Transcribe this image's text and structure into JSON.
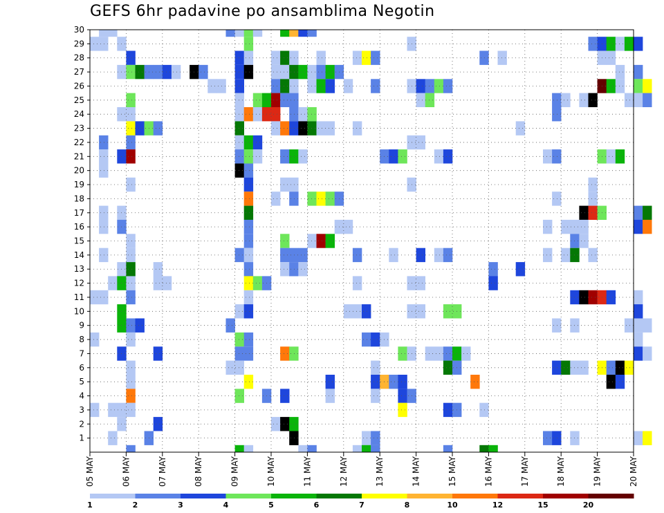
{
  "chart_data": {
    "type": "heatmap",
    "title": "GEFS 6hr padavine po ansamblima Negotin",
    "xlabel": "",
    "ylabel": "",
    "x_tick_labels": [
      "05 MAY",
      "06 MAY",
      "07 MAY",
      "08 MAY",
      "09 MAY",
      "10 MAY",
      "11 MAY",
      "12 MAY",
      "13 MAY",
      "14 MAY",
      "15 MAY",
      "16 MAY",
      "17 MAY",
      "18 MAY",
      "19 MAY",
      "20 MAY"
    ],
    "y_tick_labels": [
      "1",
      "2",
      "3",
      "4",
      "5",
      "6",
      "7",
      "8",
      "9",
      "10",
      "11",
      "12",
      "13",
      "14",
      "15",
      "16",
      "17",
      "18",
      "19",
      "20",
      "21",
      "22",
      "23",
      "24",
      "25",
      "26",
      "27",
      "28",
      "29",
      "30"
    ],
    "time_steps_per_day": 4,
    "grid": true,
    "legend": {
      "position": "bottom",
      "levels": [
        "1",
        "2",
        "3",
        "4",
        "5",
        "6",
        "7",
        "8",
        "10",
        "12",
        "15",
        "20"
      ],
      "colors": [
        "#b4c8f4",
        "#5a82e6",
        "#1e46dc",
        "#6ee65a",
        "#0ab40a",
        "#057805",
        "#ffff00",
        "#ffb432",
        "#ff780a",
        "#dc2814",
        "#a00000",
        "#640000"
      ]
    },
    "cells": [
      [
        30,
        5.25,
        1
      ],
      [
        30,
        5.5,
        1
      ],
      [
        30,
        8.75,
        2
      ],
      [
        30,
        9.0,
        1
      ],
      [
        30,
        9.25,
        4
      ],
      [
        30,
        9.5,
        1
      ],
      [
        30,
        10.25,
        5
      ],
      [
        30,
        10.5,
        8
      ],
      [
        30,
        10.75,
        3
      ],
      [
        30,
        11.0,
        2
      ],
      [
        29,
        5.0,
        1
      ],
      [
        29,
        5.25,
        1
      ],
      [
        29,
        5.75,
        1
      ],
      [
        29,
        9.25,
        4
      ],
      [
        29,
        13.75,
        1
      ],
      [
        29,
        18.75,
        2
      ],
      [
        29,
        19.0,
        3
      ],
      [
        29,
        19.25,
        5
      ],
      [
        29,
        19.5,
        1
      ],
      [
        29,
        19.75,
        5
      ],
      [
        29,
        20.0,
        3
      ],
      [
        28,
        6.0,
        3
      ],
      [
        28,
        9.0,
        3
      ],
      [
        28,
        9.25,
        1
      ],
      [
        28,
        10.0,
        1
      ],
      [
        28,
        10.25,
        6
      ],
      [
        28,
        10.5,
        1
      ],
      [
        28,
        11.25,
        1
      ],
      [
        28,
        12.25,
        1
      ],
      [
        28,
        12.5,
        7
      ],
      [
        28,
        12.75,
        2
      ],
      [
        28,
        15.75,
        2
      ],
      [
        28,
        16.25,
        1
      ],
      [
        28,
        19.0,
        1
      ],
      [
        28,
        19.25,
        1
      ],
      [
        27,
        5.75,
        1
      ],
      [
        27,
        6.0,
        4
      ],
      [
        27,
        6.25,
        6
      ],
      [
        27,
        6.5,
        2
      ],
      [
        27,
        6.75,
        2
      ],
      [
        27,
        7.0,
        3
      ],
      [
        27,
        7.25,
        1
      ],
      [
        27,
        7.75,
        13
      ],
      [
        27,
        8.0,
        2
      ],
      [
        27,
        9.0,
        3
      ],
      [
        27,
        9.25,
        13
      ],
      [
        27,
        10.0,
        1
      ],
      [
        27,
        10.25,
        1
      ],
      [
        27,
        10.5,
        6
      ],
      [
        27,
        10.75,
        5
      ],
      [
        27,
        11.0,
        1
      ],
      [
        27,
        11.25,
        2
      ],
      [
        27,
        11.5,
        5
      ],
      [
        27,
        11.75,
        2
      ],
      [
        27,
        19.5,
        1
      ],
      [
        27,
        20.0,
        2
      ],
      [
        26,
        8.25,
        1
      ],
      [
        26,
        8.5,
        1
      ],
      [
        26,
        9.0,
        3
      ],
      [
        26,
        10.0,
        2
      ],
      [
        26,
        10.25,
        6
      ],
      [
        26,
        10.5,
        1
      ],
      [
        26,
        11.0,
        1
      ],
      [
        26,
        11.25,
        5
      ],
      [
        26,
        11.5,
        3
      ],
      [
        26,
        12.0,
        1
      ],
      [
        26,
        12.75,
        2
      ],
      [
        26,
        13.75,
        1
      ],
      [
        26,
        14.0,
        3
      ],
      [
        26,
        14.25,
        2
      ],
      [
        26,
        14.5,
        4
      ],
      [
        26,
        14.75,
        2
      ],
      [
        26,
        19.0,
        12
      ],
      [
        26,
        19.25,
        5
      ],
      [
        26,
        19.5,
        1
      ],
      [
        26,
        20.0,
        4
      ],
      [
        26,
        20.25,
        7
      ],
      [
        25,
        6.0,
        4
      ],
      [
        25,
        9.0,
        1
      ],
      [
        25,
        9.5,
        4
      ],
      [
        25,
        9.75,
        5
      ],
      [
        25,
        10.0,
        11
      ],
      [
        25,
        10.25,
        2
      ],
      [
        25,
        10.5,
        2
      ],
      [
        25,
        14.0,
        1
      ],
      [
        25,
        14.25,
        4
      ],
      [
        25,
        17.75,
        2
      ],
      [
        25,
        18.0,
        1
      ],
      [
        25,
        18.5,
        1
      ],
      [
        25,
        18.75,
        13
      ],
      [
        25,
        19.75,
        1
      ],
      [
        25,
        20.0,
        1
      ],
      [
        25,
        20.25,
        2
      ],
      [
        24,
        5.75,
        1
      ],
      [
        24,
        6.0,
        1
      ],
      [
        24,
        9.0,
        1
      ],
      [
        24,
        9.25,
        9
      ],
      [
        24,
        9.5,
        1
      ],
      [
        24,
        9.75,
        10
      ],
      [
        24,
        10.0,
        10
      ],
      [
        24,
        10.5,
        2
      ],
      [
        24,
        10.75,
        1
      ],
      [
        24,
        11.0,
        4
      ],
      [
        24,
        17.75,
        2
      ],
      [
        23,
        6.0,
        7
      ],
      [
        23,
        6.25,
        3
      ],
      [
        23,
        6.5,
        4
      ],
      [
        23,
        6.75,
        2
      ],
      [
        23,
        9.0,
        6
      ],
      [
        23,
        10.0,
        1
      ],
      [
        23,
        10.25,
        9
      ],
      [
        23,
        10.5,
        3
      ],
      [
        23,
        10.75,
        14
      ],
      [
        23,
        11.0,
        6
      ],
      [
        23,
        11.25,
        1
      ],
      [
        23,
        11.5,
        1
      ],
      [
        23,
        12.25,
        1
      ],
      [
        23,
        16.75,
        1
      ],
      [
        22,
        5.25,
        2
      ],
      [
        22,
        6.0,
        2
      ],
      [
        22,
        9.0,
        1
      ],
      [
        22,
        9.25,
        5
      ],
      [
        22,
        9.5,
        3
      ],
      [
        22,
        13.75,
        1
      ],
      [
        22,
        14.0,
        1
      ],
      [
        21,
        5.25,
        1
      ],
      [
        21,
        5.75,
        3
      ],
      [
        21,
        6.0,
        11
      ],
      [
        21,
        9.0,
        2
      ],
      [
        21,
        9.25,
        4
      ],
      [
        21,
        9.5,
        1
      ],
      [
        21,
        10.25,
        2
      ],
      [
        21,
        10.5,
        5
      ],
      [
        21,
        10.75,
        1
      ],
      [
        21,
        13.0,
        2
      ],
      [
        21,
        13.25,
        3
      ],
      [
        21,
        13.5,
        4
      ],
      [
        21,
        14.5,
        1
      ],
      [
        21,
        14.75,
        3
      ],
      [
        21,
        17.5,
        1
      ],
      [
        21,
        17.75,
        2
      ],
      [
        21,
        19.0,
        4
      ],
      [
        21,
        19.25,
        1
      ],
      [
        21,
        19.5,
        5
      ],
      [
        20,
        5.25,
        1
      ],
      [
        20,
        9.0,
        13
      ],
      [
        20,
        9.25,
        2
      ],
      [
        19,
        6.0,
        1
      ],
      [
        19,
        9.25,
        3
      ],
      [
        19,
        10.25,
        1
      ],
      [
        19,
        10.5,
        1
      ],
      [
        19,
        13.75,
        1
      ],
      [
        19,
        18.75,
        1
      ],
      [
        18,
        9.25,
        9
      ],
      [
        18,
        10.0,
        1
      ],
      [
        18,
        10.5,
        2
      ],
      [
        18,
        11.0,
        4
      ],
      [
        18,
        11.25,
        7
      ],
      [
        18,
        11.5,
        4
      ],
      [
        18,
        11.75,
        2
      ],
      [
        18,
        17.75,
        1
      ],
      [
        18,
        18.75,
        1
      ],
      [
        17,
        5.25,
        1
      ],
      [
        17,
        5.75,
        1
      ],
      [
        17,
        9.25,
        6
      ],
      [
        17,
        18.5,
        13
      ],
      [
        17,
        18.75,
        10
      ],
      [
        17,
        19.0,
        4
      ],
      [
        17,
        20.0,
        2
      ],
      [
        17,
        20.25,
        6
      ],
      [
        16,
        5.25,
        1
      ],
      [
        16,
        5.75,
        2
      ],
      [
        16,
        9.25,
        2
      ],
      [
        16,
        11.75,
        1
      ],
      [
        16,
        12.0,
        1
      ],
      [
        16,
        17.5,
        1
      ],
      [
        16,
        18.0,
        1
      ],
      [
        16,
        18.25,
        1
      ],
      [
        16,
        18.5,
        1
      ],
      [
        16,
        20.0,
        3
      ],
      [
        16,
        20.25,
        9
      ],
      [
        15,
        6.0,
        1
      ],
      [
        15,
        9.25,
        2
      ],
      [
        15,
        10.25,
        4
      ],
      [
        15,
        11.0,
        1
      ],
      [
        15,
        11.25,
        11
      ],
      [
        15,
        11.5,
        5
      ],
      [
        15,
        18.25,
        2
      ],
      [
        15,
        18.5,
        1
      ],
      [
        14,
        5.25,
        1
      ],
      [
        14,
        6.0,
        1
      ],
      [
        14,
        9.0,
        2
      ],
      [
        14,
        9.25,
        1
      ],
      [
        14,
        10.25,
        2
      ],
      [
        14,
        10.5,
        2
      ],
      [
        14,
        10.75,
        2
      ],
      [
        14,
        12.25,
        2
      ],
      [
        14,
        13.25,
        1
      ],
      [
        14,
        14.0,
        3
      ],
      [
        14,
        14.5,
        1
      ],
      [
        14,
        14.75,
        2
      ],
      [
        14,
        17.5,
        1
      ],
      [
        14,
        18.0,
        1
      ],
      [
        14,
        18.25,
        6
      ],
      [
        14,
        18.75,
        1
      ],
      [
        13,
        5.75,
        1
      ],
      [
        13,
        6.0,
        6
      ],
      [
        13,
        6.75,
        1
      ],
      [
        13,
        9.25,
        2
      ],
      [
        13,
        10.25,
        1
      ],
      [
        13,
        10.5,
        2
      ],
      [
        13,
        10.75,
        1
      ],
      [
        13,
        16.0,
        2
      ],
      [
        13,
        16.75,
        3
      ],
      [
        12,
        5.5,
        1
      ],
      [
        12,
        5.75,
        5
      ],
      [
        12,
        6.0,
        1
      ],
      [
        12,
        6.75,
        1
      ],
      [
        12,
        7.0,
        1
      ],
      [
        12,
        9.25,
        7
      ],
      [
        12,
        9.5,
        4
      ],
      [
        12,
        9.75,
        2
      ],
      [
        12,
        12.25,
        1
      ],
      [
        12,
        13.75,
        1
      ],
      [
        12,
        14.0,
        1
      ],
      [
        12,
        16.0,
        3
      ],
      [
        11,
        5.0,
        1
      ],
      [
        11,
        5.25,
        1
      ],
      [
        11,
        6.0,
        2
      ],
      [
        11,
        9.25,
        1
      ],
      [
        11,
        18.25,
        3
      ],
      [
        11,
        18.5,
        13
      ],
      [
        11,
        18.75,
        11
      ],
      [
        11,
        19.0,
        10
      ],
      [
        11,
        19.25,
        3
      ],
      [
        11,
        20.0,
        1
      ],
      [
        10,
        5.75,
        5
      ],
      [
        10,
        9.0,
        1
      ],
      [
        10,
        9.25,
        3
      ],
      [
        10,
        12.0,
        1
      ],
      [
        10,
        12.25,
        1
      ],
      [
        10,
        12.5,
        3
      ],
      [
        10,
        13.75,
        1
      ],
      [
        10,
        14.0,
        1
      ],
      [
        10,
        14.75,
        4
      ],
      [
        10,
        15.0,
        4
      ],
      [
        10,
        20.0,
        3
      ],
      [
        9,
        5.75,
        5
      ],
      [
        9,
        6.0,
        2
      ],
      [
        9,
        6.25,
        3
      ],
      [
        9,
        8.75,
        2
      ],
      [
        9,
        17.75,
        1
      ],
      [
        9,
        18.25,
        1
      ],
      [
        9,
        19.75,
        1
      ],
      [
        9,
        20.0,
        1
      ],
      [
        9,
        20.25,
        1
      ],
      [
        8,
        5.0,
        1
      ],
      [
        8,
        6.0,
        1
      ],
      [
        8,
        9.0,
        4
      ],
      [
        8,
        9.25,
        2
      ],
      [
        8,
        12.5,
        2
      ],
      [
        8,
        12.75,
        3
      ],
      [
        8,
        13.0,
        1
      ],
      [
        8,
        20.0,
        1
      ],
      [
        7,
        5.75,
        3
      ],
      [
        7,
        6.75,
        3
      ],
      [
        7,
        9.0,
        2
      ],
      [
        7,
        9.25,
        2
      ],
      [
        7,
        10.25,
        9
      ],
      [
        7,
        10.5,
        4
      ],
      [
        7,
        13.5,
        4
      ],
      [
        7,
        13.75,
        1
      ],
      [
        7,
        14.25,
        1
      ],
      [
        7,
        14.5,
        1
      ],
      [
        7,
        14.75,
        2
      ],
      [
        7,
        15.0,
        5
      ],
      [
        7,
        15.25,
        1
      ],
      [
        7,
        20.0,
        3
      ],
      [
        7,
        20.25,
        1
      ],
      [
        6,
        6.0,
        1
      ],
      [
        6,
        8.75,
        1
      ],
      [
        6,
        9.0,
        1
      ],
      [
        6,
        12.75,
        1
      ],
      [
        6,
        14.75,
        6
      ],
      [
        6,
        15.0,
        2
      ],
      [
        6,
        17.75,
        3
      ],
      [
        6,
        18.0,
        6
      ],
      [
        6,
        18.25,
        1
      ],
      [
        6,
        18.5,
        1
      ],
      [
        6,
        19.0,
        7
      ],
      [
        6,
        19.25,
        2
      ],
      [
        6,
        19.5,
        14
      ],
      [
        6,
        19.75,
        7
      ],
      [
        5,
        6.0,
        1
      ],
      [
        5,
        9.25,
        7
      ],
      [
        5,
        11.5,
        3
      ],
      [
        5,
        12.75,
        3
      ],
      [
        5,
        13.0,
        8
      ],
      [
        5,
        13.25,
        2
      ],
      [
        5,
        13.5,
        3
      ],
      [
        5,
        15.5,
        9
      ],
      [
        5,
        19.25,
        13
      ],
      [
        5,
        19.5,
        3
      ],
      [
        4,
        6.0,
        9
      ],
      [
        4,
        9.0,
        4
      ],
      [
        4,
        9.75,
        2
      ],
      [
        4,
        10.25,
        3
      ],
      [
        4,
        11.5,
        1
      ],
      [
        4,
        12.75,
        1
      ],
      [
        4,
        13.5,
        3
      ],
      [
        4,
        13.75,
        2
      ],
      [
        3,
        5.0,
        1
      ],
      [
        3,
        5.5,
        1
      ],
      [
        3,
        5.75,
        1
      ],
      [
        3,
        6.0,
        1
      ],
      [
        3,
        13.5,
        7
      ],
      [
        3,
        14.75,
        3
      ],
      [
        3,
        15.0,
        2
      ],
      [
        3,
        15.75,
        1
      ],
      [
        2,
        5.75,
        1
      ],
      [
        2,
        6.75,
        3
      ],
      [
        2,
        10.0,
        1
      ],
      [
        2,
        10.25,
        14
      ],
      [
        2,
        10.5,
        5
      ],
      [
        1,
        5.5,
        1
      ],
      [
        1,
        6.5,
        2
      ],
      [
        1,
        10.5,
        14
      ],
      [
        1,
        12.5,
        1
      ],
      [
        1,
        12.75,
        2
      ],
      [
        1,
        17.5,
        2
      ],
      [
        1,
        17.75,
        3
      ],
      [
        1,
        18.25,
        1
      ],
      [
        1,
        20.0,
        1
      ],
      [
        1,
        20.25,
        7
      ],
      [
        0,
        6.0,
        2
      ],
      [
        0,
        9.0,
        5
      ],
      [
        0,
        9.25,
        1
      ],
      [
        0,
        10.75,
        1
      ],
      [
        0,
        11.0,
        2
      ],
      [
        0,
        12.25,
        1
      ],
      [
        0,
        12.5,
        5
      ],
      [
        0,
        12.75,
        2
      ],
      [
        0,
        14.75,
        2
      ],
      [
        0,
        15.75,
        6
      ],
      [
        0,
        16.0,
        5
      ]
    ]
  }
}
